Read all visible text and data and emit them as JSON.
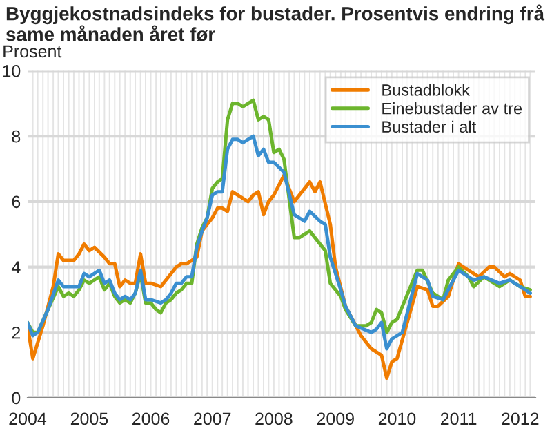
{
  "chart_data": {
    "type": "line",
    "title": "Byggjekostnadsindeks for bustader. Prosentvis endring frå same månaden året før",
    "ylabel": "Prosent",
    "xlim": [
      "2004-01",
      "2012-04"
    ],
    "xticks": [
      {
        "value": "2004-01",
        "label": "2004"
      },
      {
        "value": "2005-01",
        "label": "2005"
      },
      {
        "value": "2006-01",
        "label": "2006"
      },
      {
        "value": "2007-01",
        "label": "2007"
      },
      {
        "value": "2008-01",
        "label": "2008"
      },
      {
        "value": "2009-01",
        "label": "2009"
      },
      {
        "value": "2010-01",
        "label": "2010"
      },
      {
        "value": "2011-01",
        "label": "2011"
      },
      {
        "value": "2012-01",
        "label": "2012"
      }
    ],
    "ylim": [
      0,
      10
    ],
    "yticks": [
      0,
      2,
      4,
      6,
      8,
      10
    ],
    "grid": true,
    "legend": "top right",
    "marker": "none",
    "line_style": "solid",
    "series": [
      {
        "name": "Bustadblokk",
        "color": "#f07c00",
        "x": [
          "2004-01",
          "2004-02",
          "2004-04",
          "2004-06",
          "2004-07",
          "2004-08",
          "2004-10",
          "2004-11",
          "2004-12",
          "2005-01",
          "2005-02",
          "2005-04",
          "2005-05",
          "2005-06",
          "2005-07",
          "2005-08",
          "2005-09",
          "2005-10",
          "2005-11",
          "2005-12",
          "2006-01",
          "2006-03",
          "2006-04",
          "2006-06",
          "2006-07",
          "2006-08",
          "2006-09",
          "2006-10",
          "2006-11",
          "2006-12",
          "2007-01",
          "2007-02",
          "2007-03",
          "2007-04",
          "2007-05",
          "2007-07",
          "2007-08",
          "2007-09",
          "2007-10",
          "2007-11",
          "2007-12",
          "2008-01",
          "2008-03",
          "2008-05",
          "2008-08",
          "2008-09",
          "2008-10",
          "2008-12",
          "2009-01",
          "2009-03",
          "2009-06",
          "2009-07",
          "2009-08",
          "2009-10",
          "2009-11",
          "2009-12",
          "2010-01",
          "2010-05",
          "2010-07",
          "2010-08",
          "2010-09",
          "2010-11",
          "2010-12",
          "2011-01",
          "2011-03",
          "2011-04",
          "2011-05",
          "2011-07",
          "2011-08",
          "2011-10",
          "2011-11",
          "2012-01",
          "2012-02",
          "2012-03"
        ],
        "values": [
          2.2,
          1.2,
          2.2,
          3.4,
          4.4,
          4.2,
          4.2,
          4.4,
          4.7,
          4.5,
          4.6,
          4.3,
          4.1,
          4.1,
          3.4,
          3.6,
          3.5,
          3.5,
          4.4,
          3.5,
          3.5,
          3.4,
          3.6,
          4.0,
          4.1,
          4.1,
          4.2,
          4.3,
          5.1,
          5.3,
          5.5,
          5.8,
          5.8,
          5.7,
          6.3,
          6.1,
          6.0,
          6.2,
          6.3,
          5.6,
          6.0,
          6.2,
          6.8,
          6.0,
          6.6,
          6.3,
          6.6,
          5.3,
          4.0,
          2.8,
          1.9,
          1.7,
          1.5,
          1.3,
          0.6,
          1.1,
          1.2,
          3.4,
          3.3,
          2.8,
          2.8,
          3.1,
          3.6,
          4.1,
          3.9,
          3.8,
          3.7,
          4.0,
          4.0,
          3.7,
          3.8,
          3.6,
          3.1,
          3.1
        ]
      },
      {
        "name": "Einebustader av tre",
        "color": "#6cb52d",
        "x": [
          "2004-01",
          "2004-02",
          "2004-03",
          "2004-05",
          "2004-07",
          "2004-08",
          "2004-09",
          "2004-10",
          "2004-11",
          "2004-12",
          "2005-01",
          "2005-03",
          "2005-04",
          "2005-05",
          "2005-06",
          "2005-07",
          "2005-08",
          "2005-09",
          "2005-10",
          "2005-11",
          "2005-12",
          "2006-01",
          "2006-02",
          "2006-03",
          "2006-04",
          "2006-05",
          "2006-06",
          "2006-07",
          "2006-08",
          "2006-09",
          "2006-10",
          "2006-11",
          "2006-12",
          "2007-01",
          "2007-02",
          "2007-03",
          "2007-04",
          "2007-05",
          "2007-06",
          "2007-07",
          "2007-08",
          "2007-09",
          "2007-10",
          "2007-11",
          "2007-12",
          "2008-01",
          "2008-02",
          "2008-03",
          "2008-05",
          "2008-06",
          "2008-08",
          "2008-10",
          "2008-11",
          "2008-12",
          "2009-02",
          "2009-03",
          "2009-05",
          "2009-07",
          "2009-08",
          "2009-09",
          "2009-10",
          "2009-11",
          "2009-12",
          "2010-01",
          "2010-05",
          "2010-06",
          "2010-08",
          "2010-10",
          "2010-11",
          "2011-01",
          "2011-03",
          "2011-04",
          "2011-06",
          "2011-09",
          "2011-11",
          "2012-01",
          "2012-03"
        ],
        "values": [
          2.3,
          2.0,
          2.0,
          2.7,
          3.4,
          3.1,
          3.2,
          3.1,
          3.3,
          3.6,
          3.5,
          3.7,
          3.3,
          3.5,
          3.1,
          2.9,
          3.0,
          2.9,
          3.2,
          3.8,
          2.9,
          2.9,
          2.7,
          2.6,
          2.9,
          3.0,
          3.2,
          3.3,
          3.5,
          3.5,
          4.7,
          5.2,
          5.5,
          6.4,
          6.6,
          6.7,
          8.5,
          9.0,
          9.0,
          8.9,
          9.0,
          9.1,
          8.5,
          8.6,
          8.5,
          7.5,
          7.6,
          7.3,
          4.9,
          4.9,
          5.1,
          4.7,
          4.5,
          3.5,
          3.1,
          2.7,
          2.2,
          2.2,
          2.3,
          2.7,
          2.6,
          2.0,
          2.3,
          2.4,
          3.9,
          3.9,
          3.2,
          3.0,
          3.6,
          4.0,
          3.7,
          3.4,
          3.7,
          3.4,
          3.6,
          3.4,
          3.3
        ]
      },
      {
        "name": "Bustader i alt",
        "color": "#3a8fd0",
        "x": [
          "2004-01",
          "2004-02",
          "2004-03",
          "2004-05",
          "2004-07",
          "2004-08",
          "2004-10",
          "2004-11",
          "2004-12",
          "2005-01",
          "2005-03",
          "2005-04",
          "2005-05",
          "2005-06",
          "2005-07",
          "2005-08",
          "2005-09",
          "2005-10",
          "2005-11",
          "2005-12",
          "2006-01",
          "2006-03",
          "2006-04",
          "2006-05",
          "2006-06",
          "2006-07",
          "2006-08",
          "2006-09",
          "2006-10",
          "2006-11",
          "2006-12",
          "2007-01",
          "2007-02",
          "2007-03",
          "2007-04",
          "2007-05",
          "2007-06",
          "2007-07",
          "2007-08",
          "2007-09",
          "2007-10",
          "2007-11",
          "2007-12",
          "2008-01",
          "2008-03",
          "2008-05",
          "2008-07",
          "2008-08",
          "2008-10",
          "2008-11",
          "2008-12",
          "2009-02",
          "2009-03",
          "2009-05",
          "2009-08",
          "2009-09",
          "2009-10",
          "2009-11",
          "2009-12",
          "2010-02",
          "2010-05",
          "2010-07",
          "2010-08",
          "2010-10",
          "2010-12",
          "2011-01",
          "2011-03",
          "2011-04",
          "2011-06",
          "2011-09",
          "2011-11",
          "2011-12",
          "2012-02",
          "2012-03"
        ],
        "values": [
          2.3,
          1.9,
          2.0,
          2.7,
          3.6,
          3.4,
          3.4,
          3.4,
          3.8,
          3.7,
          3.9,
          3.5,
          3.6,
          3.2,
          3.0,
          3.1,
          3.0,
          3.2,
          3.9,
          3.0,
          3.0,
          2.9,
          3.0,
          3.2,
          3.5,
          3.5,
          3.7,
          3.7,
          4.6,
          5.1,
          5.5,
          6.2,
          6.3,
          6.3,
          7.6,
          7.9,
          7.9,
          7.8,
          7.9,
          8.0,
          7.4,
          7.6,
          7.2,
          7.2,
          6.9,
          5.6,
          5.4,
          5.7,
          5.4,
          5.3,
          4.3,
          3.3,
          2.8,
          2.2,
          2.0,
          2.1,
          2.3,
          1.5,
          1.8,
          2.0,
          3.8,
          3.6,
          3.1,
          3.0,
          3.6,
          3.9,
          3.7,
          3.6,
          3.7,
          3.5,
          3.6,
          3.5,
          3.3,
          3.2
        ]
      }
    ]
  }
}
